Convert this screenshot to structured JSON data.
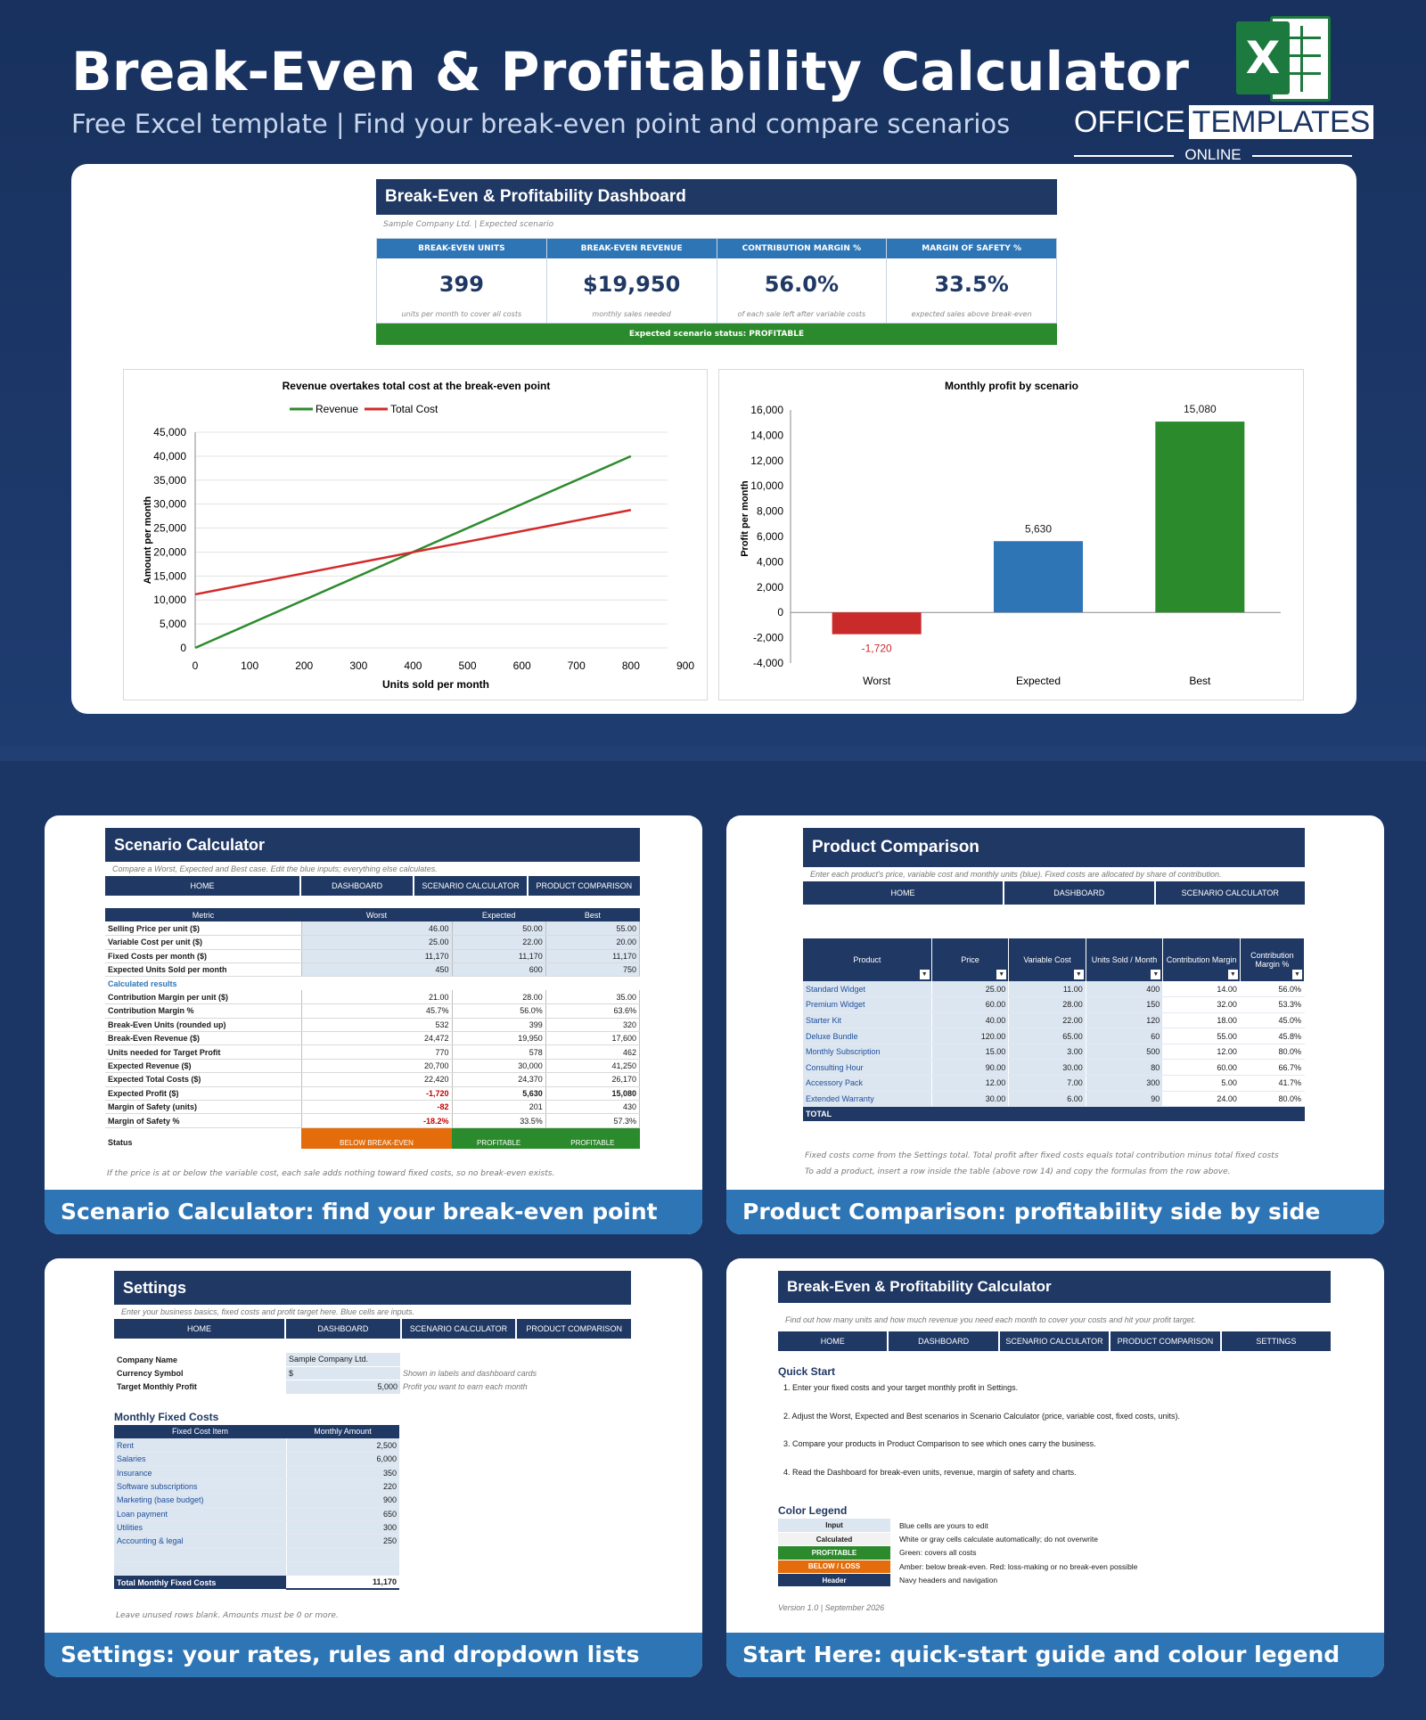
{
  "header": {
    "title": "Break-Even & Profitability Calculator",
    "subtitle": "Free Excel template  |  Find your break-even point and compare scenarios",
    "logo_office": "OFFICE",
    "logo_templates": "TEMPLATES",
    "logo_online": "ONLINE",
    "logo_x": "X"
  },
  "dashboard": {
    "title": "Break-Even & Profitability Dashboard",
    "note": "Sample Company Ltd.  |  Expected scenario",
    "kpis": [
      {
        "label": "BREAK-EVEN UNITS",
        "value": "399",
        "sub": "units per month to cover all costs"
      },
      {
        "label": "BREAK-EVEN REVENUE",
        "value": "$19,950",
        "sub": "monthly sales needed"
      },
      {
        "label": "CONTRIBUTION MARGIN %",
        "value": "56.0%",
        "sub": "of each sale left after variable costs"
      },
      {
        "label": "MARGIN OF SAFETY %",
        "value": "33.5%",
        "sub": "expected sales above break-even"
      }
    ],
    "status": "Expected scenario status: PROFITABLE"
  },
  "chart_data": [
    {
      "type": "line",
      "title": "Revenue overtakes total cost at the break-even point",
      "xlabel": "Units sold per month",
      "ylabel": "Amount per month",
      "legend": "top",
      "grid": true,
      "xlim": [
        0,
        900
      ],
      "ylim": [
        0,
        45000
      ],
      "xticks": [
        "0",
        "100",
        "200",
        "300",
        "400",
        "500",
        "600",
        "700",
        "800",
        "900"
      ],
      "yticks": [
        "0",
        "5,000",
        "10,000",
        "15,000",
        "20,000",
        "25,000",
        "30,000",
        "35,000",
        "40,000",
        "45,000"
      ],
      "x": [
        0,
        800
      ],
      "series": [
        {
          "name": "Revenue",
          "values": [
            0,
            40000
          ],
          "color": "#2e8b2e"
        },
        {
          "name": "Total Cost",
          "values": [
            11170,
            28770
          ],
          "color": "#d42a2a"
        }
      ]
    },
    {
      "type": "bar",
      "title": "Monthly profit by scenario",
      "xlabel": "",
      "ylabel": "Profit per month",
      "ylim": [
        -4000,
        16000
      ],
      "yticks": [
        "-4,000",
        "-2,000",
        "0",
        "2,000",
        "4,000",
        "6,000",
        "8,000",
        "10,000",
        "12,000",
        "14,000",
        "16,000"
      ],
      "categories": [
        "Worst",
        "Expected",
        "Best"
      ],
      "values": [
        -1720,
        5630,
        15080
      ],
      "data_labels": [
        "-1,720",
        "5,630",
        "15,080"
      ],
      "colors": [
        "#c92a2a",
        "#2e75b6",
        "#2b8a2b"
      ]
    }
  ],
  "captions": {
    "scenario": "Scenario Calculator: find your break-even point",
    "product": "Product Comparison: profitability side by side",
    "settings": "Settings: your rates, rules and dropdown lists",
    "start": "Start Here: quick-start guide and colour legend"
  },
  "scenario": {
    "title": "Scenario Calculator",
    "note": "Compare a Worst, Expected and Best case. Edit the blue inputs; everything else calculates.",
    "nav": [
      "HOME",
      "DASHBOARD",
      "SCENARIO CALCULATOR",
      "PRODUCT COMPARISON"
    ],
    "headers": [
      "Metric",
      "Worst",
      "Expected",
      "Best"
    ],
    "inputs": [
      [
        "Selling Price per unit ($)",
        "46.00",
        "50.00",
        "55.00"
      ],
      [
        "Variable Cost per unit ($)",
        "25.00",
        "22.00",
        "20.00"
      ],
      [
        "Fixed Costs per month ($)",
        "11,170",
        "11,170",
        "11,170"
      ],
      [
        "Expected Units Sold per month",
        "450",
        "600",
        "750"
      ]
    ],
    "calc_label": "Calculated results",
    "results": [
      [
        "Contribution Margin per unit ($)",
        "21.00",
        "28.00",
        "35.00"
      ],
      [
        "Contribution Margin %",
        "45.7%",
        "56.0%",
        "63.6%"
      ],
      [
        "Break-Even Units (rounded up)",
        "532",
        "399",
        "320"
      ],
      [
        "Break-Even Revenue ($)",
        "24,472",
        "19,950",
        "17,600"
      ],
      [
        "Units needed for Target Profit",
        "770",
        "578",
        "462"
      ],
      [
        "Expected Revenue ($)",
        "20,700",
        "30,000",
        "41,250"
      ],
      [
        "Expected Total Costs ($)",
        "22,420",
        "24,370",
        "26,170"
      ],
      [
        "Expected Profit ($)",
        "-1,720",
        "5,630",
        "15,080"
      ],
      [
        "Margin of Safety (units)",
        "-82",
        "201",
        "430"
      ],
      [
        "Margin of Safety %",
        "-18.2%",
        "33.5%",
        "57.3%"
      ]
    ],
    "status_label": "Status",
    "status": [
      "BELOW BREAK-EVEN",
      "PROFITABLE",
      "PROFITABLE"
    ],
    "footer": "If the price is at or below the variable cost, each sale adds nothing toward fixed costs, so no break-even exists."
  },
  "product": {
    "title": "Product Comparison",
    "note": "Enter each product's price, variable cost and monthly units (blue). Fixed costs are allocated by share of contribution.",
    "nav": [
      "HOME",
      "DASHBOARD",
      "SCENARIO CALCULATOR"
    ],
    "headers": [
      "Product",
      "Price",
      "Variable Cost",
      "Units Sold / Month",
      "Contribution Margin",
      "Contribution Margin %"
    ],
    "rows": [
      [
        "Standard Widget",
        "25.00",
        "11.00",
        "400",
        "14.00",
        "56.0%"
      ],
      [
        "Premium Widget",
        "60.00",
        "28.00",
        "150",
        "32.00",
        "53.3%"
      ],
      [
        "Starter Kit",
        "40.00",
        "22.00",
        "120",
        "18.00",
        "45.0%"
      ],
      [
        "Deluxe Bundle",
        "120.00",
        "65.00",
        "60",
        "55.00",
        "45.8%"
      ],
      [
        "Monthly Subscription",
        "15.00",
        "3.00",
        "500",
        "12.00",
        "80.0%"
      ],
      [
        "Consulting Hour",
        "90.00",
        "30.00",
        "80",
        "60.00",
        "66.7%"
      ],
      [
        "Accessory Pack",
        "12.00",
        "7.00",
        "300",
        "5.00",
        "41.7%"
      ],
      [
        "Extended Warranty",
        "30.00",
        "6.00",
        "90",
        "24.00",
        "80.0%"
      ]
    ],
    "total": "TOTAL",
    "footer1": "Fixed costs come from the Settings total. Total profit after fixed costs equals total contribution minus total fixed costs",
    "footer2": "To add a product, insert a row inside the table (above row 14) and copy the formulas from the row above."
  },
  "settings": {
    "title": "Settings",
    "note": "Enter your business basics, fixed costs and profit target here. Blue cells are inputs.",
    "nav": [
      "HOME",
      "DASHBOARD",
      "SCENARIO CALCULATOR",
      "PRODUCT COMPARISON"
    ],
    "basics": [
      [
        "Company Name",
        "Sample Company Ltd.",
        ""
      ],
      [
        "Currency Symbol",
        "$",
        "Shown in labels and dashboard cards"
      ],
      [
        "Target Monthly Profit",
        "5,000",
        "Profit you want to earn each month"
      ]
    ],
    "fixed_title": "Monthly Fixed Costs",
    "fixed_headers": [
      "Fixed Cost Item",
      "Monthly Amount"
    ],
    "fixed": [
      [
        "Rent",
        "2,500"
      ],
      [
        "Salaries",
        "6,000"
      ],
      [
        "Insurance",
        "350"
      ],
      [
        "Software subscriptions",
        "220"
      ],
      [
        "Marketing (base budget)",
        "900"
      ],
      [
        "Loan payment",
        "650"
      ],
      [
        "Utilities",
        "300"
      ],
      [
        "Accounting & legal",
        "250"
      ]
    ],
    "total_label": "Total Monthly Fixed Costs",
    "total": "11,170",
    "footer": "Leave unused rows blank. Amounts must be 0 or more."
  },
  "start": {
    "title": "Break-Even & Profitability Calculator",
    "note": "Find out how many units and how much revenue you need each month to cover your costs and hit your profit target.",
    "nav": [
      "HOME",
      "DASHBOARD",
      "SCENARIO CALCULATOR",
      "PRODUCT COMPARISON",
      "SETTINGS"
    ],
    "qs_title": "Quick Start",
    "steps": [
      "1.  Enter your fixed costs and your target monthly profit in Settings.",
      "2.  Adjust the Worst, Expected and Best scenarios in Scenario Calculator (price, variable cost, fixed costs, units).",
      "3.  Compare your products in Product Comparison to see which ones carry the business.",
      "4.  Read the Dashboard for break-even units, revenue, margin of safety and charts."
    ],
    "legend_title": "Color Legend",
    "legend": [
      [
        "Input",
        "Blue cells are yours to edit",
        "#dce6f1",
        "#1a1a1a"
      ],
      [
        "Calculated",
        "White or gray cells calculate automatically; do not overwrite",
        "#f2f2f2",
        "#1a1a1a"
      ],
      [
        "PROFITABLE",
        "Green: covers all costs",
        "#2b8a2b",
        "#ffffff"
      ],
      [
        "BELOW / LOSS",
        "Amber: below break-even. Red: loss-making or no break-even possible",
        "#e46c0a",
        "#ffffff"
      ],
      [
        "Header",
        "Navy headers and navigation",
        "#1f3864",
        "#ffffff"
      ]
    ],
    "version": "Version 1.0  |  September 2026"
  }
}
